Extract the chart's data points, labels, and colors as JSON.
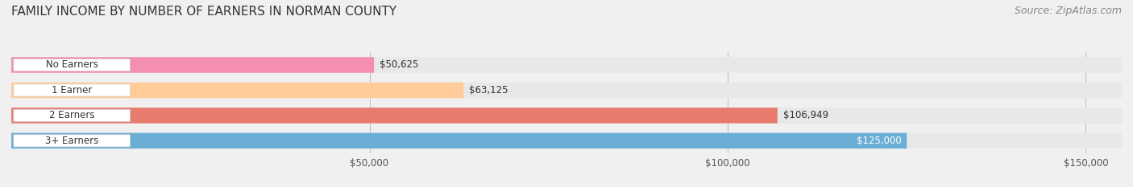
{
  "title": "FAMILY INCOME BY NUMBER OF EARNERS IN NORMAN COUNTY",
  "source": "Source: ZipAtlas.com",
  "categories": [
    "No Earners",
    "1 Earner",
    "2 Earners",
    "3+ Earners"
  ],
  "values": [
    50625,
    63125,
    106949,
    125000
  ],
  "bar_colors": [
    "#f48fb1",
    "#ffcc99",
    "#e87b6e",
    "#6aaed6"
  ],
  "label_colors": [
    "#333333",
    "#333333",
    "#333333",
    "#ffffff"
  ],
  "value_labels": [
    "$50,625",
    "$63,125",
    "$106,949",
    "$125,000"
  ],
  "xlim": [
    0,
    155000
  ],
  "xticks": [
    50000,
    100000,
    150000
  ],
  "xtick_labels": [
    "$50,000",
    "$100,000",
    "$150,000"
  ],
  "background_color": "#f0f0f0",
  "bar_background_color": "#e8e8e8",
  "title_fontsize": 11,
  "source_fontsize": 9,
  "bar_height": 0.62
}
